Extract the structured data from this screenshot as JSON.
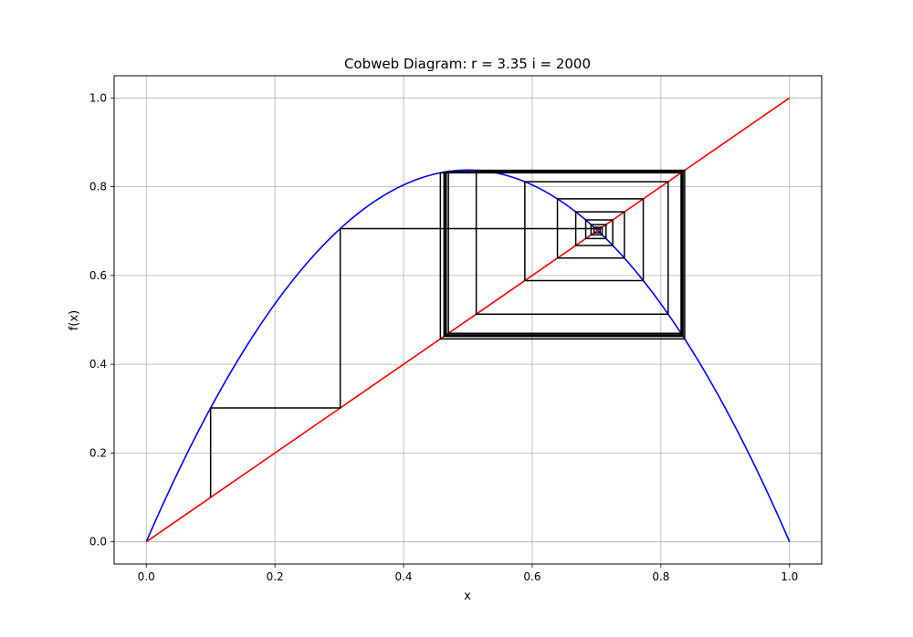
{
  "chart_data": {
    "type": "line",
    "title": "Cobweb Diagram: r = 3.35 i = 2000",
    "xlabel": "x",
    "ylabel": "f(x)",
    "xlim": [
      -0.05,
      1.05
    ],
    "ylim": [
      -0.05,
      1.05
    ],
    "xticks": [
      "0.0",
      "0.2",
      "0.4",
      "0.6",
      "0.8",
      "1.0"
    ],
    "yticks": [
      "0.0",
      "0.2",
      "0.4",
      "0.6",
      "0.8",
      "1.0"
    ],
    "grid": true,
    "legend": "none",
    "r": 3.35,
    "x0": 0.1,
    "iterations": 2000,
    "series": [
      {
        "kind": "logistic-curve",
        "color": "#0000ff",
        "function": "f(x) = 3.35 * x * (1 - x)",
        "x_range": [
          0,
          1
        ]
      },
      {
        "kind": "identity-line",
        "color": "#ff0000",
        "points": [
          [
            0,
            0
          ],
          [
            1,
            1
          ]
        ]
      },
      {
        "kind": "cobweb",
        "color": "#000000",
        "start_point": [
          0.1,
          0.1
        ],
        "converges_to": [
          0.8358,
          0.4599
        ],
        "period": 2
      }
    ]
  }
}
